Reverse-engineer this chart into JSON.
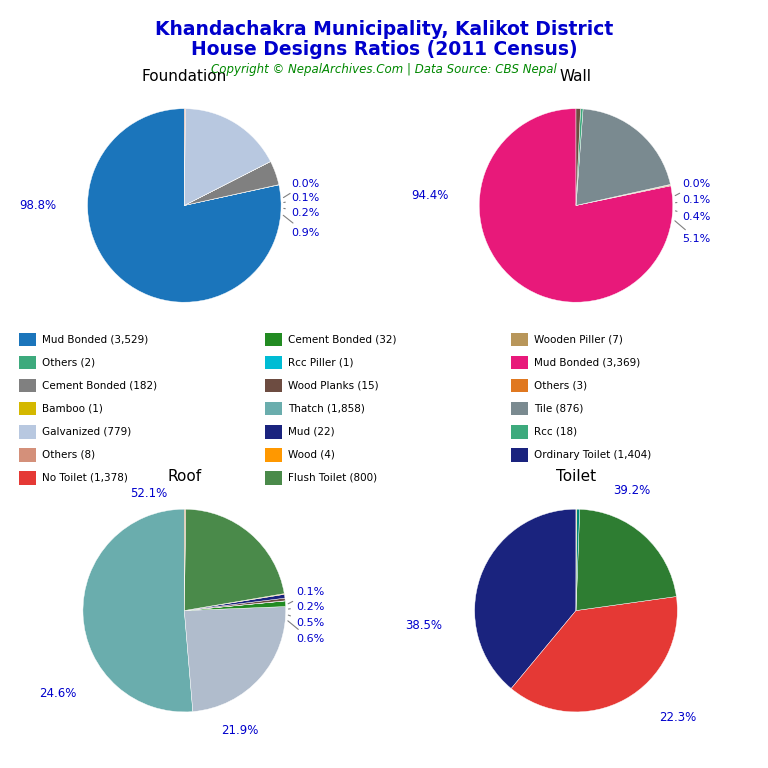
{
  "title_line1": "Khandachakra Municipality, Kalikot District",
  "title_line2": "House Designs Ratios (2011 Census)",
  "copyright": "Copyright © NepalArchives.Com | Data Source: CBS Nepal",
  "title_color": "#0000CC",
  "copyright_color": "#008800",
  "label_color": "#0000CC",
  "foundation": {
    "title": "Foundation",
    "values": [
      3529,
      2,
      182,
      1,
      779,
      8
    ],
    "colors": [
      "#1B75BB",
      "#3DAA7D",
      "#808080",
      "#D4B800",
      "#B8C8E0",
      "#D4907A"
    ],
    "startangle": 90
  },
  "wall": {
    "title": "Wall",
    "values": [
      3369,
      7,
      3,
      876,
      18,
      32
    ],
    "colors": [
      "#E8197A",
      "#B8965A",
      "#E07820",
      "#7A8A90",
      "#3DAA7D",
      "#6D4C41"
    ],
    "startangle": 90
  },
  "roof": {
    "title": "Roof",
    "values": [
      1858,
      879,
      32,
      1,
      15,
      22,
      4,
      800,
      8
    ],
    "colors": [
      "#6AADAD",
      "#B0BCCC",
      "#228B22",
      "#00BCD4",
      "#6D4C41",
      "#1A237E",
      "#FF9800",
      "#4A8A4A",
      "#C09060"
    ],
    "startangle": 90
  },
  "toilet": {
    "title": "Toilet",
    "values": [
      1404,
      1378,
      800,
      18,
      3
    ],
    "colors": [
      "#1A237E",
      "#E53935",
      "#2E7D32",
      "#00897B",
      "#FFA500"
    ],
    "startangle": 90
  },
  "legend_cols": [
    [
      {
        "label": "Mud Bonded (3,529)",
        "color": "#1B75BB"
      },
      {
        "label": "Others (2)",
        "color": "#3DAA7D"
      },
      {
        "label": "Cement Bonded (182)",
        "color": "#808080"
      },
      {
        "label": "Bamboo (1)",
        "color": "#D4B800"
      },
      {
        "label": "Galvanized (779)",
        "color": "#B8C8E0"
      },
      {
        "label": "Others (8)",
        "color": "#D4907A"
      },
      {
        "label": "No Toilet (1,378)",
        "color": "#E53935"
      }
    ],
    [
      {
        "label": "Cement Bonded (32)",
        "color": "#228B22"
      },
      {
        "label": "Rcc Piller (1)",
        "color": "#00BCD4"
      },
      {
        "label": "Wood Planks (15)",
        "color": "#6D4C41"
      },
      {
        "label": "Thatch (1,858)",
        "color": "#6AADAD"
      },
      {
        "label": "Mud (22)",
        "color": "#1A237E"
      },
      {
        "label": "Wood (4)",
        "color": "#FF9800"
      },
      {
        "label": "Flush Toilet (800)",
        "color": "#4A8A4A"
      }
    ],
    [
      {
        "label": "Wooden Piller (7)",
        "color": "#B8965A"
      },
      {
        "label": "Mud Bonded (3,369)",
        "color": "#E8197A"
      },
      {
        "label": "Others (3)",
        "color": "#E07820"
      },
      {
        "label": "Tile (876)",
        "color": "#7A8A90"
      },
      {
        "label": "Rcc (18)",
        "color": "#3DAA7D"
      },
      {
        "label": "Ordinary Toilet (1,404)",
        "color": "#1A237E"
      }
    ]
  ]
}
